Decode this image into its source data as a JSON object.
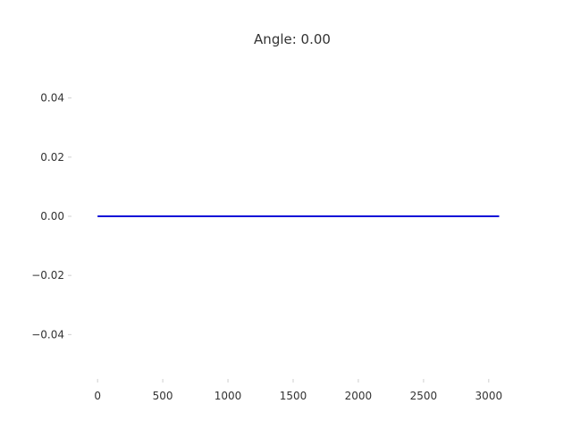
{
  "chart_data": {
    "type": "line",
    "title": "Angle: 0.00",
    "xlabel": "",
    "ylabel": "",
    "xlim": [
      -200,
      3200
    ],
    "ylim": [
      -0.055,
      0.055
    ],
    "x_ticks": [
      0,
      500,
      1000,
      1500,
      2000,
      2500,
      3000
    ],
    "x_tick_labels": [
      "0",
      "500",
      "1000",
      "1500",
      "2000",
      "2500",
      "3000"
    ],
    "y_ticks": [
      0.04,
      0.02,
      0.0,
      -0.02,
      -0.04
    ],
    "y_tick_labels": [
      "0.04",
      "0.02",
      "0.00",
      "−0.02",
      "−0.04"
    ],
    "grid": false,
    "series": [
      {
        "color": "#1010d8",
        "x": [
          0,
          3080
        ],
        "y": [
          0.0,
          0.0
        ]
      }
    ]
  }
}
